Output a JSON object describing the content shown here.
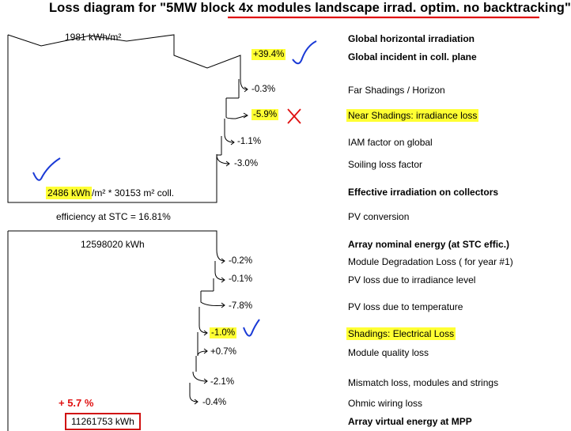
{
  "title_prefix": "Loss diagram for \"5MW block ",
  "title_suffix": "4x modules landscape irrad. optim. no backtracking\"",
  "box1": {
    "top_value": "1981 kWh/m²",
    "bottom_value_hl": "2486 kWh",
    "bottom_value_rest": "/m² * 30153 m² coll.",
    "efficiency": "efficiency at STC = 16.81%"
  },
  "box2": {
    "top_value": "12598020 kWh",
    "annotation": "+ 5.7 %",
    "bottom_value": "11261753 kWh"
  },
  "steps": [
    {
      "pct": "+39.4%",
      "label": "Global incident in coll. plane",
      "bold": true,
      "hl_pct": true,
      "hl_label": false
    },
    {
      "pct": "-0.3%",
      "label": "Far Shadings / Horizon",
      "bold": false,
      "hl_pct": false,
      "hl_label": false
    },
    {
      "pct": "-5.9%",
      "label": "Near Shadings: irradiance loss",
      "bold": false,
      "hl_pct": true,
      "hl_label": true
    },
    {
      "pct": "-1.1%",
      "label": "IAM factor on global",
      "bold": false,
      "hl_pct": false,
      "hl_label": false
    },
    {
      "pct": "-3.0%",
      "label": "Soiling loss factor",
      "bold": false,
      "hl_pct": false,
      "hl_label": false
    },
    {
      "pct": "-0.2%",
      "label": "Module Degradation Loss ( for year #1)",
      "bold": false,
      "hl_pct": false,
      "hl_label": false
    },
    {
      "pct": "-0.1%",
      "label": "PV loss due to irradiance level",
      "bold": false,
      "hl_pct": false,
      "hl_label": false
    },
    {
      "pct": "-7.8%",
      "label": "PV loss due to temperature",
      "bold": false,
      "hl_pct": false,
      "hl_label": false
    },
    {
      "pct": "-1.0%",
      "label": "Shadings: Electrical Loss",
      "bold": false,
      "hl_pct": true,
      "hl_label": true
    },
    {
      "pct": "+0.7%",
      "label": "Module quality loss",
      "bold": false,
      "hl_pct": false,
      "hl_label": false
    },
    {
      "pct": "-2.1%",
      "label": "Mismatch loss, modules and strings",
      "bold": false,
      "hl_pct": false,
      "hl_label": false
    },
    {
      "pct": "-0.4%",
      "label": "Ohmic wiring loss",
      "bold": false,
      "hl_pct": false,
      "hl_label": false
    }
  ],
  "right_labels": {
    "global_horizontal": "Global horizontal irradiation",
    "effective_irradiation": "Effective irradiation on collectors",
    "pv_conversion": "PV conversion",
    "array_nominal": "Array nominal energy (at STC effic.)",
    "array_virtual": "Array virtual energy at MPP"
  },
  "colors": {
    "highlight": "#ffff33",
    "red": "#e01010",
    "blue": "#1a3ad6"
  }
}
